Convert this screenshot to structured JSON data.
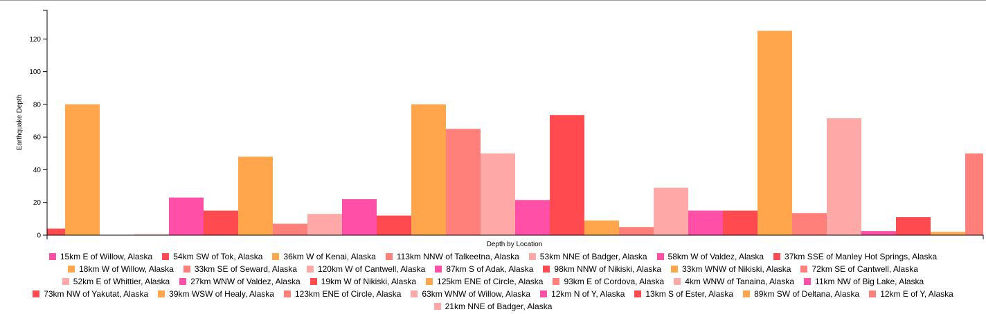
{
  "chart_data": {
    "type": "bar",
    "x_label": "Depth by Location",
    "y_label": "Earthquake Depth",
    "categories": [
      "15km E of Willow, Alaska",
      "54km SW of Tok, Alaska",
      "36km W of Kenai, Alaska",
      "113km NNW of Talkeetna, Alaska",
      "53km NNE of Badger, Alaska",
      "58km W of Valdez, Alaska",
      "37km SSE of Manley Hot Springs, Alaska",
      "18km W of Willow, Alaska",
      "33km SE of Seward, Alaska",
      "120km W of Cantwell, Alaska",
      "87km S of Adak, Alaska",
      "98km NNW of Nikiski, Alaska",
      "33km WNW of Nikiski, Alaska",
      "72km SE of Cantwell, Alaska",
      "52km E of Whittier, Alaska",
      "27km WNW of Valdez, Alaska",
      "19km W of Nikiski, Alaska",
      "125km ENE of Circle, Alaska",
      "93km E of Cordova, Alaska",
      "4km WNW of Tanaina, Alaska",
      "11km NW of Big Lake, Alaska",
      "73km NW of Yakutat, Alaska",
      "39km WSW of Healy, Alaska",
      "123km ENE of Circle, Alaska",
      "63km WNW of Willow, Alaska",
      "12km N of Y, Alaska",
      "13km S of Ester, Alaska",
      "89km SW of Deltana, Alaska",
      "12km E of Y, Alaska",
      "21km NNE of Badger, Alaska"
    ],
    "values": [
      null,
      4,
      80,
      0,
      0.5,
      23,
      15,
      48,
      7,
      13,
      22,
      12,
      80,
      65,
      50,
      21.5,
      73.5,
      9,
      5,
      29,
      15,
      15,
      125,
      13.5,
      71.5,
      2.5,
      11,
      2,
      50,
      null
    ],
    "palette": [
      "#ff4fa6",
      "#ff4b50",
      "#ffa64d",
      "#ff807a",
      "#ffa8a8"
    ],
    "ylim": [
      0,
      137.5
    ],
    "yticks": [
      0,
      20,
      40,
      60,
      80,
      100,
      120
    ]
  }
}
